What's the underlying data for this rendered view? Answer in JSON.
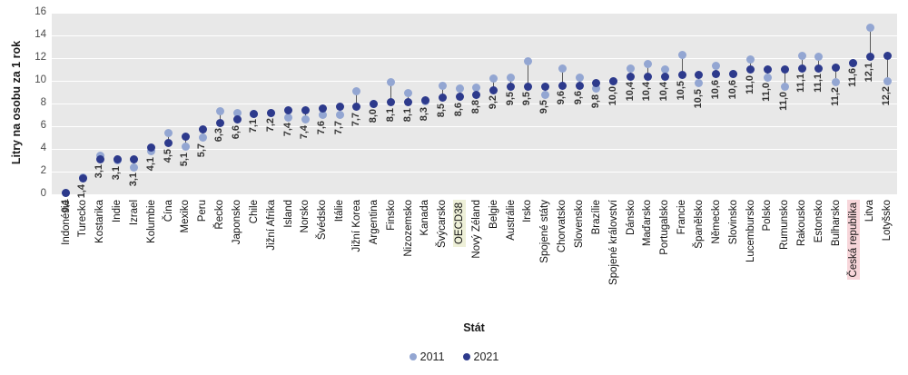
{
  "chart_data": {
    "type": "scatter",
    "subtype": "dumbbell-dot-plot",
    "title": "",
    "xlabel": "Stát",
    "ylabel": "Litry na osobu za 1 rok",
    "ylim": [
      0,
      16
    ],
    "yticks": [
      0,
      2,
      4,
      6,
      8,
      10,
      12,
      14,
      16
    ],
    "grid": "horizontal white gridlines on gray plot background",
    "legend_position": "bottom-center",
    "decimal_separator": ",",
    "plot_background": "#e8e8e8",
    "gridline_color": "#ffffff",
    "stem_color": "#5a5a5a",
    "categories": [
      "Indonésie",
      "Turecko",
      "Kostarika",
      "Indie",
      "Izrael",
      "Kolumbie",
      "Čína",
      "Mexiko",
      "Peru",
      "Řecko",
      "Japonsko",
      "Chile",
      "Jižní Afrika",
      "Island",
      "Norsko",
      "Švédsko",
      "Itálie",
      "Jižní Korea",
      "Argentina",
      "Finsko",
      "Nizozemsko",
      "Kanada",
      "Švýcarsko",
      "OECD38",
      "Nový Zéland",
      "Belgie",
      "Austrálie",
      "Irsko",
      "Spojené státy",
      "Chorvatsko",
      "Slovensko",
      "Brazílie",
      "Spojené království",
      "Dánsko",
      "Maďarsko",
      "Portugalsko",
      "Francie",
      "Španělsko",
      "Německo",
      "Slovinsko",
      "Lucembursko",
      "Polsko",
      "Rumunsko",
      "Rakousko",
      "Estonsko",
      "Bulharsko",
      "Česká republika",
      "Litva",
      "Lotyšsko"
    ],
    "category_highlights": {
      "OECD38": "#eef0d8",
      "Česká republika": "#f7d6da"
    },
    "series": [
      {
        "name": "2011",
        "color": "#93a6d2",
        "labeled": false,
        "values": [
          0.1,
          1.5,
          3.4,
          3.0,
          2.4,
          3.8,
          5.4,
          4.2,
          5.0,
          7.3,
          7.2,
          7.1,
          7.2,
          6.8,
          6.6,
          7.0,
          7.0,
          9.1,
          8.0,
          9.9,
          8.9,
          8.2,
          9.6,
          9.3,
          9.4,
          10.2,
          10.3,
          11.7,
          8.8,
          11.1,
          10.3,
          9.3,
          10.0,
          11.1,
          11.5,
          11.0,
          12.3,
          9.8,
          11.3,
          10.6,
          11.9,
          10.3,
          9.5,
          12.2,
          12.1,
          9.9,
          11.6,
          14.7,
          10.0
        ]
      },
      {
        "name": "2021",
        "color": "#2d3a8c",
        "labeled": true,
        "values": [
          0.1,
          1.4,
          3.1,
          3.1,
          3.1,
          4.1,
          4.5,
          5.1,
          5.7,
          6.3,
          6.6,
          7.1,
          7.2,
          7.4,
          7.4,
          7.6,
          7.7,
          7.7,
          8.0,
          8.1,
          8.1,
          8.3,
          8.5,
          8.6,
          8.8,
          9.2,
          9.5,
          9.5,
          9.5,
          9.6,
          9.6,
          9.8,
          10.0,
          10.4,
          10.4,
          10.4,
          10.5,
          10.5,
          10.6,
          10.6,
          11.0,
          11.0,
          11.0,
          11.1,
          11.1,
          11.2,
          11.6,
          12.1,
          12.2
        ],
        "value_labels": [
          "0,1",
          "1,4",
          "3,1",
          "3,1",
          "3,1",
          "4,1",
          "4,5",
          "5,1",
          "5,7",
          "6,3",
          "6,6",
          "7,1",
          "7,2",
          "7,4",
          "7,4",
          "7,6",
          "7,7",
          "7,7",
          "8,0",
          "8,1",
          "8,1",
          "8,3",
          "8,5",
          "8,6",
          "8,8",
          "9,2",
          "9,5",
          "9,5",
          "9,5",
          "9,6",
          "9,6",
          "9,8",
          "10,0",
          "10,4",
          "10,4",
          "10,4",
          "10,5",
          "10,5",
          "10,6",
          "10,6",
          "11,0",
          "11,0",
          "11,0",
          "11,1",
          "11,1",
          "11,2",
          "11,6",
          "12,1",
          "12,2"
        ]
      }
    ]
  }
}
